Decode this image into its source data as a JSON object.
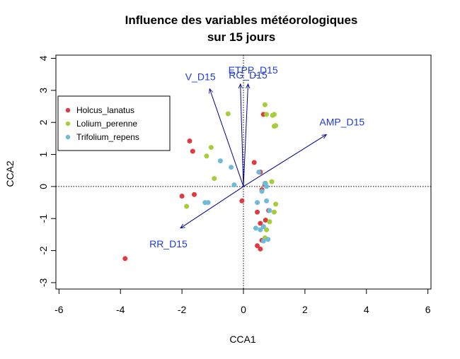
{
  "chart_data": {
    "type": "scatter",
    "title": [
      "Influence des variables météorologiques",
      "sur 15 jours"
    ],
    "xlabel": "CCA1",
    "ylabel": "CCA2",
    "xlim": [
      -6.1,
      6.1
    ],
    "ylim": [
      -3.2,
      4.1
    ],
    "x_ticks": [
      -6,
      -4,
      -2,
      0,
      2,
      4,
      6
    ],
    "y_ticks": [
      -3,
      -2,
      -1,
      0,
      1,
      2,
      3,
      4
    ],
    "reference_lines": {
      "x": 0,
      "y": 0,
      "style": "dotted"
    },
    "legend": {
      "placement": "top-left"
    },
    "arrow_color": "#00008B",
    "arrow_label_color": "#1F3BD9",
    "arrows": [
      {
        "label": "V_D15",
        "x": -1.1,
        "y": 3.05
      },
      {
        "label": "ETPP_D15",
        "x": -0.1,
        "y": 3.2
      },
      {
        "label": "RG_D15",
        "x": 0.15,
        "y": 3.2
      },
      {
        "label": "AMP_D15",
        "x": 2.7,
        "y": 1.62
      },
      {
        "label": "RR_D15",
        "x": -2.05,
        "y": -1.3
      }
    ],
    "series": [
      {
        "name": "Holcus_lanatus",
        "color": "#E03A3E",
        "points": [
          [
            -3.85,
            -2.25
          ],
          [
            -1.75,
            1.42
          ],
          [
            -1.65,
            1.1
          ],
          [
            -2.0,
            -0.3
          ],
          [
            -1.6,
            -0.25
          ],
          [
            -0.05,
            -0.45
          ],
          [
            0.35,
            0.75
          ],
          [
            0.65,
            2.25
          ],
          [
            0.55,
            0.45
          ],
          [
            0.6,
            -0.1
          ],
          [
            0.7,
            0.05
          ],
          [
            0.45,
            -0.8
          ],
          [
            0.55,
            -1.15
          ],
          [
            0.45,
            -1.85
          ],
          [
            0.55,
            -1.95
          ],
          [
            0.72,
            -1.05
          ],
          [
            0.82,
            -0.75
          ],
          [
            0.6,
            -1.68
          ]
        ]
      },
      {
        "name": "Lolium_perenne",
        "color": "#A6CE39",
        "points": [
          [
            -0.5,
            2.27
          ],
          [
            -1.05,
            1.22
          ],
          [
            -1.2,
            0.95
          ],
          [
            -0.95,
            0.25
          ],
          [
            -1.85,
            -0.62
          ],
          [
            0.7,
            2.55
          ],
          [
            0.75,
            2.25
          ],
          [
            0.95,
            2.22
          ],
          [
            1.0,
            2.25
          ],
          [
            1.0,
            1.88
          ],
          [
            1.05,
            1.9
          ],
          [
            0.72,
            0.1
          ],
          [
            0.92,
            0.15
          ],
          [
            1.05,
            -0.55
          ],
          [
            1.0,
            -0.8
          ],
          [
            0.85,
            -1.1
          ],
          [
            0.75,
            -1.35
          ],
          [
            0.7,
            -1.6
          ]
        ]
      },
      {
        "name": "Trifolium_repens",
        "color": "#6FBAD6",
        "points": [
          [
            -0.75,
            0.8
          ],
          [
            -0.4,
            0.6
          ],
          [
            -1.25,
            -0.5
          ],
          [
            -1.15,
            -0.5
          ],
          [
            -0.3,
            0.05
          ],
          [
            0.5,
            0.45
          ],
          [
            0.7,
            0.1
          ],
          [
            0.6,
            -0.15
          ],
          [
            0.75,
            -0.45
          ],
          [
            0.85,
            -0.75
          ],
          [
            0.55,
            -1.35
          ],
          [
            0.65,
            -1.25
          ],
          [
            0.8,
            -1.65
          ],
          [
            0.65,
            -1.7
          ],
          [
            0.4,
            -1.3
          ],
          [
            0.45,
            -0.5
          ],
          [
            0.75,
            0.0
          ]
        ]
      }
    ]
  }
}
